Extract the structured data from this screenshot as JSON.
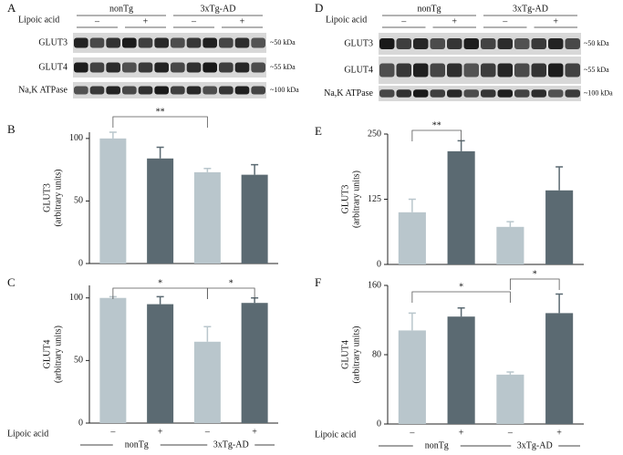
{
  "blots": [
    {
      "panel": "D",
      "factor_label": "Lipoic acid",
      "groups": [
        "nonTg",
        "3xTg-AD"
      ],
      "signs": [
        "–",
        "+",
        "–",
        "+"
      ],
      "rows": [
        {
          "protein": "GLUT3",
          "size": "~50 kDa"
        },
        {
          "protein": "GLUT4",
          "size": "~55 kDa"
        },
        {
          "protein": "Na,K ATPase",
          "size": "~100 kDa"
        }
      ]
    },
    {
      "panel": "A",
      "factor_label": "Lipoic acid",
      "groups": [
        "nonTg",
        "3xTg-AD"
      ],
      "signs": [
        "–",
        "+",
        "–",
        "+"
      ],
      "rows": [
        {
          "protein": "GLUT3",
          "size": "~50 kDa"
        },
        {
          "protein": "GLUT4",
          "size": "~55 kDa"
        },
        {
          "protein": "Na,K ATPase",
          "size": "~100 kDa"
        }
      ]
    }
  ],
  "chart_data": [
    {
      "type": "bar",
      "panel": "B",
      "ylabel": "GLUT3",
      "ylabel_sub": "(arbitrary units)",
      "categories": [
        null,
        null,
        null,
        null
      ],
      "values": [
        100,
        84,
        73,
        71
      ],
      "errors": [
        5,
        9,
        3,
        8
      ],
      "colors": [
        "#b9c6cc",
        "#5b6a72",
        "#b9c6cc",
        "#5b6a72"
      ],
      "ylim": [
        0,
        105
      ],
      "yticks": [
        0,
        50,
        100
      ],
      "annotations": [
        "**"
      ]
    },
    {
      "type": "bar",
      "panel": "C",
      "ylabel": "GLUT4",
      "ylabel_sub": "(arbitrary units)",
      "categories": [
        "–",
        "+",
        "–",
        "+"
      ],
      "values": [
        100,
        95,
        65,
        96
      ],
      "errors": [
        1,
        6,
        12,
        4
      ],
      "colors": [
        "#b9c6cc",
        "#5b6a72",
        "#b9c6cc",
        "#5b6a72"
      ],
      "ylim": [
        0,
        110
      ],
      "yticks": [
        0,
        50,
        100
      ],
      "annotations": [
        "*",
        "*"
      ],
      "factor_label": "Lipoic acid",
      "groups": [
        "nonTg",
        "3xTg-AD"
      ]
    },
    {
      "type": "bar",
      "panel": "E",
      "ylabel": "GLUT3",
      "ylabel_sub": "(arbitrary units)",
      "categories": [
        null,
        null,
        null,
        null
      ],
      "values": [
        100,
        217,
        72,
        142
      ],
      "errors": [
        25,
        20,
        10,
        45
      ],
      "colors": [
        "#b9c6cc",
        "#5b6a72",
        "#b9c6cc",
        "#5b6a72"
      ],
      "ylim": [
        0,
        250
      ],
      "yticks": [
        0,
        125,
        250
      ],
      "annotations": [
        "**"
      ]
    },
    {
      "type": "bar",
      "panel": "F",
      "ylabel": "GLUT4",
      "ylabel_sub": "(arbitrary units)",
      "categories": [
        "–",
        "+",
        "–",
        "+"
      ],
      "values": [
        108,
        124,
        57,
        128
      ],
      "errors": [
        20,
        10,
        3,
        22
      ],
      "colors": [
        "#b9c6cc",
        "#5b6a72",
        "#b9c6cc",
        "#5b6a72"
      ],
      "ylim": [
        0,
        160
      ],
      "yticks": [
        0,
        80,
        160
      ],
      "annotations": [
        "*",
        "*"
      ],
      "factor_label": "Lipoic acid",
      "groups": [
        "nonTg",
        "3xTg-AD"
      ]
    }
  ]
}
